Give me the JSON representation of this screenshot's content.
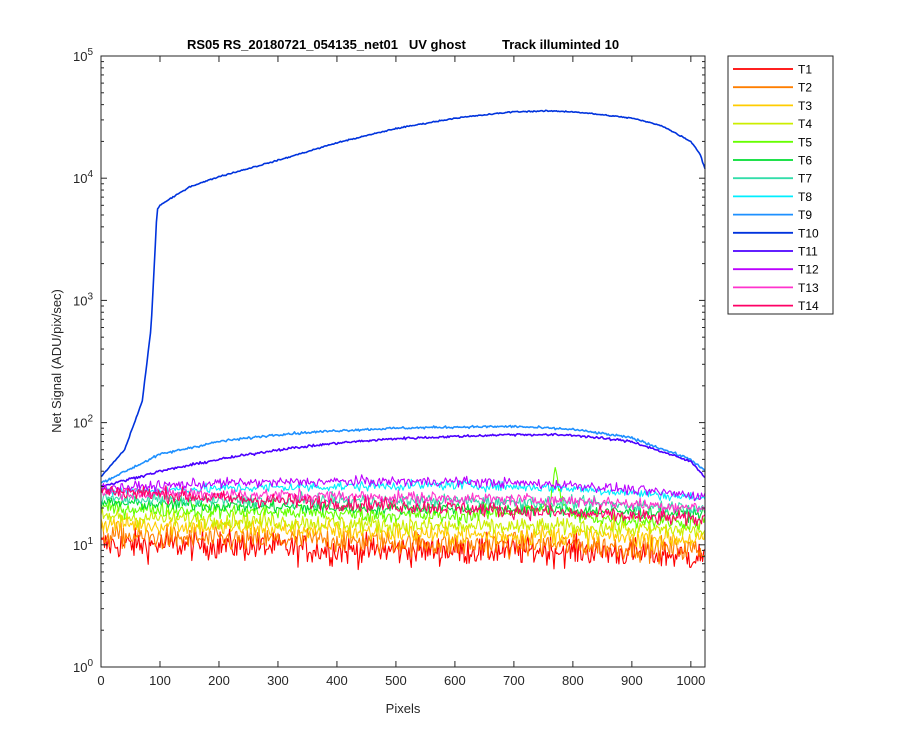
{
  "chart_data": {
    "type": "line",
    "title": "RS05 RS_20180721_054135_net01   UV ghost          Track illuminted 10",
    "xlabel": "Pixels",
    "ylabel": "Net Signal (ADU/pix/sec)",
    "xlim": [
      0,
      1024
    ],
    "ylim": [
      1,
      100000
    ],
    "yscale": "log",
    "x_ticks": [
      "0",
      "100",
      "200",
      "300",
      "400",
      "500",
      "600",
      "700",
      "800",
      "900",
      "1000"
    ],
    "y_ticks": [
      {
        "base": "10",
        "exp": "0"
      },
      {
        "base": "10",
        "exp": "1"
      },
      {
        "base": "10",
        "exp": "2"
      },
      {
        "base": "10",
        "exp": "3"
      },
      {
        "base": "10",
        "exp": "4"
      },
      {
        "base": "10",
        "exp": "5"
      }
    ],
    "legend_position": "outside-right",
    "series": [
      {
        "name": "T1",
        "color": "#ff0000",
        "x": [
          0,
          200,
          400,
          600,
          800,
          1024
        ],
        "y": [
          10,
          10,
          9,
          9,
          9,
          8
        ],
        "noise": 0.12
      },
      {
        "name": "T2",
        "color": "#ff7f00",
        "x": [
          0,
          200,
          400,
          600,
          800,
          1024
        ],
        "y": [
          12,
          11,
          11,
          10,
          10,
          9
        ],
        "noise": 0.1
      },
      {
        "name": "T3",
        "color": "#ffcc00",
        "x": [
          0,
          200,
          400,
          600,
          800,
          1024
        ],
        "y": [
          15,
          14,
          13,
          12,
          12,
          11
        ],
        "noise": 0.08
      },
      {
        "name": "T4",
        "color": "#ccee00",
        "x": [
          0,
          200,
          400,
          600,
          800,
          1024
        ],
        "y": [
          17,
          16,
          15,
          14,
          14,
          13
        ],
        "noise": 0.07
      },
      {
        "name": "T5",
        "color": "#66ff00",
        "x": [
          0,
          200,
          400,
          600,
          760,
          770,
          780,
          800,
          1024
        ],
        "y": [
          20,
          19,
          18,
          17,
          20,
          40,
          24,
          17,
          15
        ],
        "noise": 0.06
      },
      {
        "name": "T6",
        "color": "#00dd33",
        "x": [
          0,
          200,
          400,
          600,
          800,
          1024
        ],
        "y": [
          22,
          21,
          20,
          20,
          19,
          18
        ],
        "noise": 0.05
      },
      {
        "name": "T7",
        "color": "#33ddaa",
        "x": [
          0,
          200,
          400,
          600,
          800,
          1024
        ],
        "y": [
          24,
          23,
          23,
          23,
          22,
          20
        ],
        "noise": 0.05
      },
      {
        "name": "T8",
        "color": "#00eeff",
        "x": [
          0,
          200,
          400,
          600,
          800,
          1024
        ],
        "y": [
          27,
          29,
          30,
          31,
          29,
          24
        ],
        "noise": 0.04
      },
      {
        "name": "T9",
        "color": "#1e90ff",
        "x": [
          0,
          100,
          200,
          300,
          400,
          500,
          600,
          700,
          800,
          900,
          1000,
          1024
        ],
        "y": [
          32,
          55,
          70,
          80,
          86,
          90,
          92,
          93,
          88,
          75,
          50,
          40
        ],
        "noise": 0.01
      },
      {
        "name": "T10",
        "color": "#0033dd",
        "x": [
          0,
          40,
          70,
          85,
          95,
          100,
          150,
          200,
          300,
          400,
          500,
          600,
          700,
          760,
          800,
          850,
          900,
          950,
          1000,
          1015,
          1024
        ],
        "y": [
          36,
          60,
          150,
          600,
          5500,
          6000,
          8500,
          10300,
          14000,
          19500,
          25500,
          31000,
          35000,
          35500,
          35000,
          33000,
          31000,
          27000,
          20000,
          16000,
          12000
        ],
        "noise": 0.005
      },
      {
        "name": "T11",
        "color": "#4b00ff",
        "x": [
          0,
          100,
          200,
          300,
          400,
          500,
          600,
          700,
          800,
          900,
          1000,
          1024
        ],
        "y": [
          30,
          40,
          50,
          60,
          68,
          74,
          77,
          80,
          79,
          70,
          48,
          36
        ],
        "noise": 0.01
      },
      {
        "name": "T12",
        "color": "#bb00ff",
        "x": [
          0,
          200,
          400,
          600,
          800,
          1024
        ],
        "y": [
          29,
          32,
          33,
          33,
          31,
          25
        ],
        "noise": 0.04
      },
      {
        "name": "T13",
        "color": "#ff33cc",
        "x": [
          0,
          200,
          400,
          600,
          800,
          1024
        ],
        "y": [
          27,
          26,
          25,
          24,
          23,
          20
        ],
        "noise": 0.05
      },
      {
        "name": "T14",
        "color": "#ff0066",
        "x": [
          0,
          200,
          400,
          600,
          800,
          1024
        ],
        "y": [
          28,
          24,
          22,
          20,
          18,
          16
        ],
        "noise": 0.06
      }
    ]
  }
}
